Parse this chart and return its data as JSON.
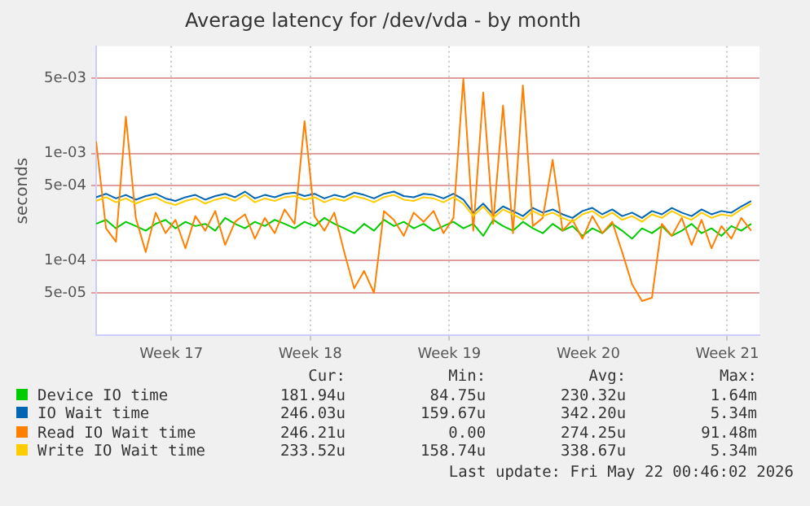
{
  "chart_data": {
    "type": "line",
    "title": "Average latency for /dev/vda - by month",
    "ylabel": "seconds",
    "log": "y",
    "grid": true,
    "legend": "bottom",
    "marker": "none",
    "line_style": "solid",
    "xlim": [
      "2026-04-18T15:00",
      "2026-05-22T01:00"
    ],
    "xticks": [
      {
        "value": "2026-04-22T10:00",
        "label": "Week 17"
      },
      {
        "value": "2026-04-29T10:00",
        "label": "Week 18"
      },
      {
        "value": "2026-05-06T10:00",
        "label": "Week 19"
      },
      {
        "value": "2026-05-13T10:00",
        "label": "Week 20"
      },
      {
        "value": "2026-05-20T10:00",
        "label": "Week 21"
      }
    ],
    "ylim": [
      2e-05,
      0.01
    ],
    "yticks": [
      {
        "value": 5e-05,
        "label": "5e-05"
      },
      {
        "value": 0.0001,
        "label": "1e-04"
      },
      {
        "value": 0.0005,
        "label": "5e-04"
      },
      {
        "value": 0.001,
        "label": "1e-03"
      },
      {
        "value": 0.005,
        "label": "5e-03"
      }
    ],
    "x": [
      "2026-04-18T15:00",
      "2026-04-19T03:00",
      "2026-04-19T15:00",
      "2026-04-20T03:00",
      "2026-04-20T15:00",
      "2026-04-21T03:00",
      "2026-04-21T15:00",
      "2026-04-22T03:00",
      "2026-04-22T15:00",
      "2026-04-23T03:00",
      "2026-04-23T15:00",
      "2026-04-24T03:00",
      "2026-04-24T15:00",
      "2026-04-25T03:00",
      "2026-04-25T15:00",
      "2026-04-26T03:00",
      "2026-04-26T15:00",
      "2026-04-27T03:00",
      "2026-04-27T15:00",
      "2026-04-28T03:00",
      "2026-04-28T15:00",
      "2026-04-29T03:00",
      "2026-04-29T15:00",
      "2026-04-30T03:00",
      "2026-04-30T15:00",
      "2026-05-01T03:00",
      "2026-05-01T15:00",
      "2026-05-02T03:00",
      "2026-05-02T15:00",
      "2026-05-03T03:00",
      "2026-05-03T15:00",
      "2026-05-04T03:00",
      "2026-05-04T15:00",
      "2026-05-05T03:00",
      "2026-05-05T15:00",
      "2026-05-06T03:00",
      "2026-05-06T15:00",
      "2026-05-07T03:00",
      "2026-05-07T15:00",
      "2026-05-08T03:00",
      "2026-05-08T15:00",
      "2026-05-09T03:00",
      "2026-05-09T15:00",
      "2026-05-10T03:00",
      "2026-05-10T15:00",
      "2026-05-11T03:00",
      "2026-05-11T15:00",
      "2026-05-12T03:00",
      "2026-05-12T15:00",
      "2026-05-13T03:00",
      "2026-05-13T15:00",
      "2026-05-14T03:00",
      "2026-05-14T15:00",
      "2026-05-15T03:00",
      "2026-05-15T15:00",
      "2026-05-16T03:00",
      "2026-05-16T15:00",
      "2026-05-17T03:00",
      "2026-05-17T15:00",
      "2026-05-18T03:00",
      "2026-05-18T15:00",
      "2026-05-19T03:00",
      "2026-05-19T15:00",
      "2026-05-20T03:00",
      "2026-05-20T15:00",
      "2026-05-21T03:00",
      "2026-05-21T15:00"
    ],
    "series": [
      {
        "name": "Device IO time",
        "color": "#00cc00",
        "values": [
          0.00022,
          0.00024,
          0.0002,
          0.00023,
          0.00021,
          0.00019,
          0.00022,
          0.00024,
          0.0002,
          0.00023,
          0.00021,
          0.00022,
          0.00019,
          0.00025,
          0.00022,
          0.0002,
          0.00023,
          0.00021,
          0.00024,
          0.00022,
          0.0002,
          0.00023,
          0.00021,
          0.00025,
          0.00022,
          0.0002,
          0.00018,
          0.00022,
          0.00019,
          0.00024,
          0.00021,
          0.00023,
          0.0002,
          0.00022,
          0.00019,
          0.00021,
          0.00023,
          0.0002,
          0.00022,
          0.00017,
          0.00024,
          0.00021,
          0.00019,
          0.00023,
          0.0002,
          0.00018,
          0.00022,
          0.00019,
          0.00021,
          0.00017,
          0.0002,
          0.00018,
          0.00022,
          0.00019,
          0.00016,
          0.0002,
          0.00018,
          0.00021,
          0.00017,
          0.00019,
          0.00022,
          0.00018,
          0.0002,
          0.00017,
          0.00021,
          0.00019,
          0.00022
        ]
      },
      {
        "name": "IO Wait time",
        "color": "#0066b3",
        "values": [
          0.00039,
          0.00042,
          0.00038,
          0.00041,
          0.00037,
          0.0004,
          0.00042,
          0.00038,
          0.00036,
          0.00039,
          0.00041,
          0.00037,
          0.0004,
          0.00042,
          0.00039,
          0.00044,
          0.00038,
          0.00041,
          0.00039,
          0.00042,
          0.00043,
          0.0004,
          0.00042,
          0.00038,
          0.00041,
          0.00039,
          0.00043,
          0.00041,
          0.00038,
          0.00042,
          0.00044,
          0.0004,
          0.00039,
          0.00042,
          0.00041,
          0.00038,
          0.00042,
          0.00037,
          0.00028,
          0.00034,
          0.00027,
          0.00032,
          0.00029,
          0.00026,
          0.00031,
          0.00028,
          0.0003,
          0.00027,
          0.00025,
          0.00029,
          0.00031,
          0.00027,
          0.0003,
          0.00026,
          0.00028,
          0.00025,
          0.00029,
          0.00027,
          0.00031,
          0.00028,
          0.00026,
          0.0003,
          0.00027,
          0.00029,
          0.00028,
          0.00032,
          0.00036
        ]
      },
      {
        "name": "Read IO Wait time",
        "color": "#ff8000",
        "values": [
          0.0013,
          0.0002,
          0.00015,
          0.0022,
          0.00025,
          0.00012,
          0.00028,
          0.00018,
          0.00024,
          0.00013,
          0.00026,
          0.00019,
          0.00029,
          0.00014,
          0.00023,
          0.00027,
          0.00016,
          0.00025,
          0.00018,
          0.0003,
          0.00022,
          0.002,
          0.00026,
          0.00019,
          0.00028,
          0.00012,
          5.5e-05,
          8e-05,
          5e-05,
          0.00029,
          0.00024,
          0.00017,
          0.00028,
          0.00023,
          0.00029,
          0.00018,
          0.00025,
          0.005,
          0.00019,
          0.0037,
          0.00022,
          0.0028,
          0.00018,
          0.0043,
          0.00021,
          0.00025,
          0.00087,
          0.00019,
          0.00024,
          0.00016,
          0.00026,
          0.00018,
          0.00023,
          0.00012,
          6e-05,
          4.2e-05,
          4.5e-05,
          0.00022,
          0.00017,
          0.00025,
          0.00014,
          0.00024,
          0.00013,
          0.00021,
          0.00016,
          0.00025,
          0.00019
        ]
      },
      {
        "name": "Write IO Wait time",
        "color": "#ffcc00",
        "values": [
          0.00036,
          0.00039,
          0.00035,
          0.00038,
          0.00034,
          0.00037,
          0.00039,
          0.00035,
          0.00033,
          0.00036,
          0.00038,
          0.00034,
          0.00037,
          0.00039,
          0.00036,
          0.00041,
          0.00035,
          0.00038,
          0.00036,
          0.00039,
          0.0004,
          0.00037,
          0.00039,
          0.00035,
          0.00038,
          0.00036,
          0.0004,
          0.00038,
          0.00035,
          0.00039,
          0.00041,
          0.00037,
          0.00036,
          0.00039,
          0.00038,
          0.00035,
          0.00039,
          0.00034,
          0.00026,
          0.00032,
          0.00025,
          0.0003,
          0.00027,
          0.00024,
          0.00029,
          0.00026,
          0.00028,
          0.00025,
          0.00023,
          0.00027,
          0.00029,
          0.00025,
          0.00028,
          0.00024,
          0.00026,
          0.00023,
          0.00027,
          0.00025,
          0.00029,
          0.00026,
          0.00024,
          0.00028,
          0.00025,
          0.00027,
          0.00026,
          0.0003,
          0.00034
        ]
      }
    ],
    "annotations": [
      "Cur:",
      "Min:",
      "Avg:",
      "Max:",
      "181.94u",
      "84.75u",
      "230.32u",
      "1.64m",
      "246.03u",
      "159.67u",
      "342.20u",
      "5.34m",
      "246.21u",
      "0.00",
      "274.25u",
      "91.48m",
      "233.52u",
      "158.74u",
      "338.67u",
      "5.34m",
      "Last update: Fri May 22 00:46:02 2026"
    ]
  }
}
